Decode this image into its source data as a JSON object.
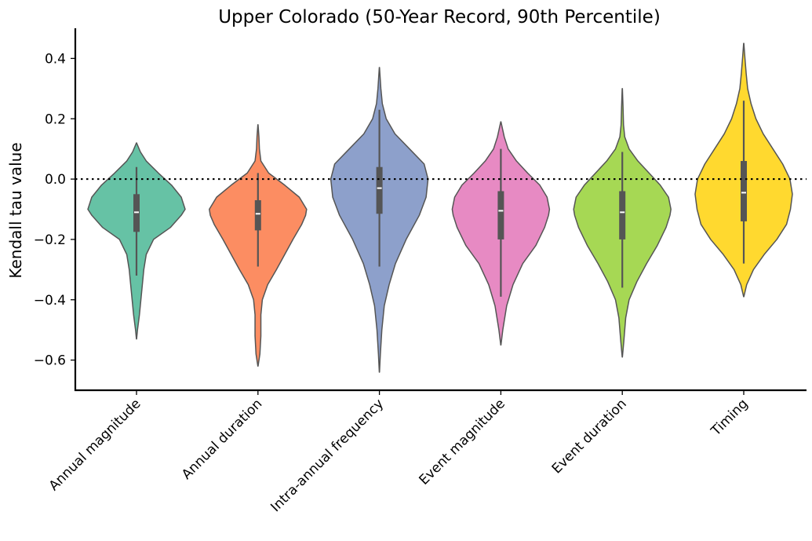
{
  "chart_data": {
    "type": "violin",
    "title": "Upper Colorado (50-Year Record, 90th Percentile)",
    "xlabel": "",
    "ylabel": "Kendall tau value",
    "ylim": [
      -0.7,
      0.5
    ],
    "yticks": [
      -0.6,
      -0.4,
      -0.2,
      0.0,
      0.2,
      0.4
    ],
    "ytick_labels": [
      "−0.6",
      "−0.4",
      "−0.2",
      "0.0",
      "0.2",
      "0.4"
    ],
    "reference_line": {
      "y": 0.0,
      "style": "dotted"
    },
    "grid": false,
    "legend": "none",
    "categories": [
      "Annual magnitude",
      "Annual duration",
      "Intra-annual frequency",
      "Event magnitude",
      "Event duration",
      "Timing"
    ],
    "colors": [
      "#66c2a5",
      "#fc8d62",
      "#8da0cb",
      "#e78ac3",
      "#a6d854",
      "#ffd92f"
    ],
    "violins": [
      {
        "category": "Annual magnitude",
        "min": -0.53,
        "max": 0.12,
        "whisker_low": -0.32,
        "q1": -0.175,
        "median": -0.11,
        "q3": -0.05,
        "whisker_high": 0.04,
        "density": [
          [
            -0.53,
            0.002
          ],
          [
            -0.5,
            0.02
          ],
          [
            -0.45,
            0.06
          ],
          [
            -0.4,
            0.09
          ],
          [
            -0.35,
            0.12
          ],
          [
            -0.3,
            0.15
          ],
          [
            -0.25,
            0.2
          ],
          [
            -0.2,
            0.35
          ],
          [
            -0.16,
            0.7
          ],
          [
            -0.12,
            0.92
          ],
          [
            -0.1,
            1.0
          ],
          [
            -0.06,
            0.92
          ],
          [
            -0.02,
            0.72
          ],
          [
            0.02,
            0.45
          ],
          [
            0.06,
            0.2
          ],
          [
            0.09,
            0.08
          ],
          [
            0.12,
            0.002
          ]
        ]
      },
      {
        "category": "Annual duration",
        "min": -0.62,
        "max": 0.18,
        "whisker_low": -0.29,
        "q1": -0.17,
        "median": -0.115,
        "q3": -0.07,
        "whisker_high": 0.02,
        "density": [
          [
            -0.62,
            0.002
          ],
          [
            -0.58,
            0.04
          ],
          [
            -0.52,
            0.06
          ],
          [
            -0.45,
            0.06
          ],
          [
            -0.4,
            0.09
          ],
          [
            -0.35,
            0.2
          ],
          [
            -0.3,
            0.38
          ],
          [
            -0.25,
            0.55
          ],
          [
            -0.2,
            0.72
          ],
          [
            -0.15,
            0.9
          ],
          [
            -0.12,
            0.98
          ],
          [
            -0.1,
            1.0
          ],
          [
            -0.06,
            0.85
          ],
          [
            -0.02,
            0.55
          ],
          [
            0.02,
            0.22
          ],
          [
            0.06,
            0.06
          ],
          [
            0.1,
            0.03
          ],
          [
            0.14,
            0.02
          ],
          [
            0.18,
            0.002
          ]
        ]
      },
      {
        "category": "Intra-annual frequency",
        "min": -0.64,
        "max": 0.37,
        "whisker_low": -0.29,
        "q1": -0.115,
        "median": -0.03,
        "q3": 0.04,
        "whisker_high": 0.23,
        "density": [
          [
            -0.64,
            0.002
          ],
          [
            -0.58,
            0.02
          ],
          [
            -0.5,
            0.05
          ],
          [
            -0.42,
            0.1
          ],
          [
            -0.35,
            0.2
          ],
          [
            -0.28,
            0.33
          ],
          [
            -0.2,
            0.55
          ],
          [
            -0.12,
            0.82
          ],
          [
            -0.06,
            0.96
          ],
          [
            0.0,
            1.0
          ],
          [
            0.05,
            0.92
          ],
          [
            0.1,
            0.62
          ],
          [
            0.15,
            0.32
          ],
          [
            0.2,
            0.14
          ],
          [
            0.25,
            0.06
          ],
          [
            0.3,
            0.03
          ],
          [
            0.37,
            0.002
          ]
        ]
      },
      {
        "category": "Event magnitude",
        "min": -0.55,
        "max": 0.19,
        "whisker_low": -0.39,
        "q1": -0.2,
        "median": -0.105,
        "q3": -0.04,
        "whisker_high": 0.1,
        "density": [
          [
            -0.55,
            0.002
          ],
          [
            -0.5,
            0.04
          ],
          [
            -0.42,
            0.12
          ],
          [
            -0.35,
            0.25
          ],
          [
            -0.28,
            0.45
          ],
          [
            -0.22,
            0.72
          ],
          [
            -0.16,
            0.9
          ],
          [
            -0.12,
            0.98
          ],
          [
            -0.1,
            1.0
          ],
          [
            -0.06,
            0.95
          ],
          [
            -0.02,
            0.8
          ],
          [
            0.02,
            0.55
          ],
          [
            0.06,
            0.32
          ],
          [
            0.1,
            0.15
          ],
          [
            0.14,
            0.07
          ],
          [
            0.19,
            0.002
          ]
        ]
      },
      {
        "category": "Event duration",
        "min": -0.59,
        "max": 0.3,
        "whisker_low": -0.36,
        "q1": -0.2,
        "median": -0.11,
        "q3": -0.04,
        "whisker_high": 0.09,
        "density": [
          [
            -0.59,
            0.002
          ],
          [
            -0.54,
            0.03
          ],
          [
            -0.46,
            0.07
          ],
          [
            -0.4,
            0.14
          ],
          [
            -0.34,
            0.3
          ],
          [
            -0.28,
            0.5
          ],
          [
            -0.22,
            0.72
          ],
          [
            -0.16,
            0.9
          ],
          [
            -0.12,
            0.98
          ],
          [
            -0.1,
            1.0
          ],
          [
            -0.06,
            0.95
          ],
          [
            -0.02,
            0.78
          ],
          [
            0.02,
            0.55
          ],
          [
            0.06,
            0.32
          ],
          [
            0.1,
            0.14
          ],
          [
            0.14,
            0.05
          ],
          [
            0.18,
            0.025
          ],
          [
            0.24,
            0.015
          ],
          [
            0.3,
            0.002
          ]
        ]
      },
      {
        "category": "Timing",
        "min": -0.39,
        "max": 0.45,
        "whisker_low": -0.28,
        "q1": -0.14,
        "median": -0.045,
        "q3": 0.06,
        "whisker_high": 0.26,
        "density": [
          [
            -0.39,
            0.002
          ],
          [
            -0.35,
            0.06
          ],
          [
            -0.3,
            0.2
          ],
          [
            -0.25,
            0.42
          ],
          [
            -0.2,
            0.68
          ],
          [
            -0.15,
            0.88
          ],
          [
            -0.1,
            0.96
          ],
          [
            -0.05,
            1.0
          ],
          [
            0.0,
            0.95
          ],
          [
            0.05,
            0.8
          ],
          [
            0.1,
            0.6
          ],
          [
            0.15,
            0.4
          ],
          [
            0.2,
            0.25
          ],
          [
            0.25,
            0.15
          ],
          [
            0.3,
            0.08
          ],
          [
            0.35,
            0.05
          ],
          [
            0.4,
            0.025
          ],
          [
            0.45,
            0.002
          ]
        ]
      }
    ]
  }
}
